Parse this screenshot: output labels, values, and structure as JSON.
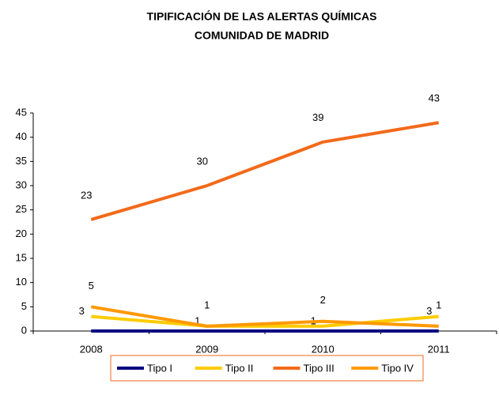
{
  "chart_data": {
    "type": "line",
    "title": [
      "TIPIFICACIÓN DE LAS ALERTAS QUÍMICAS",
      "COMUNIDAD DE MADRID"
    ],
    "categories": [
      "2008",
      "2009",
      "2010",
      "2011"
    ],
    "series": [
      {
        "name": "Tipo I",
        "color": "#000080",
        "values": [
          0,
          0,
          0,
          0
        ],
        "data_labels": false
      },
      {
        "name": "Tipo II",
        "color": "#FFCC00",
        "values": [
          3,
          1,
          1,
          3
        ],
        "data_labels": true
      },
      {
        "name": "Tipo III",
        "color": "#F26A1B",
        "values": [
          23,
          30,
          39,
          43
        ],
        "data_labels": true
      },
      {
        "name": "Tipo IV",
        "color": "#FF9900",
        "values": [
          5,
          1,
          2,
          1
        ],
        "data_labels": true
      }
    ],
    "ylim": [
      0,
      45
    ],
    "yticks": [
      0,
      5,
      10,
      15,
      20,
      25,
      30,
      35,
      40,
      45
    ],
    "legend": "bottom",
    "grid": false
  }
}
